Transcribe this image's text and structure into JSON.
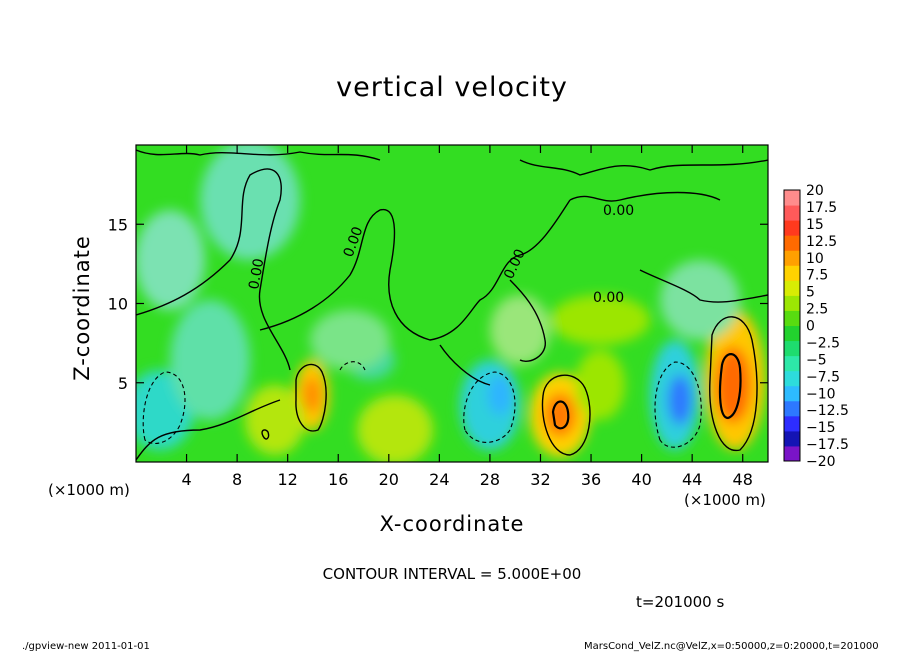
{
  "title": "vertical velocity",
  "footer": {
    "left": "./gpview-new  2011-01-01",
    "right": "MarsCond_VelZ.nc@VelZ,x=0:50000,z=0:20000,t=201000"
  },
  "contour_interval": "CONTOUR INTERVAL = 5.000E+00",
  "time_label": "t=201000 s",
  "colors": {
    "background_field": "#33dd22",
    "outline": "#000000",
    "colorbar": [
      "#7a14c8",
      "#1414b4",
      "#2d2dff",
      "#2d78ff",
      "#2dbbff",
      "#2ddcdc",
      "#2de8a8",
      "#1edc6e",
      "#22d22e",
      "#58dc10",
      "#9ce604",
      "#d8ec04",
      "#ffd200",
      "#ffa000",
      "#ff6a00",
      "#ff3a1e",
      "#ff5a5a",
      "#ff8c8c"
    ]
  },
  "chart_data": {
    "type": "heatmap",
    "title": "vertical velocity",
    "xlabel": "X-coordinate",
    "ylabel": "Z-coordinate",
    "x_unit": "(×1000 m)",
    "xlim": [
      0,
      50
    ],
    "ylim": [
      0,
      20
    ],
    "x_ticks": [
      4,
      8,
      12,
      16,
      20,
      24,
      28,
      32,
      36,
      40,
      44,
      48
    ],
    "y_ticks": [
      5,
      10,
      15
    ],
    "contour_labels": [
      "0.00",
      "0.00",
      "0.00",
      "0.00",
      "0.00"
    ],
    "colorbar": {
      "levels": [
        20,
        17.5,
        15,
        12.5,
        10,
        7.5,
        5,
        2.5,
        0,
        -2.5,
        -5,
        -7.5,
        -10,
        -12.5,
        -15,
        -17.5,
        -20
      ],
      "level_labels": [
        "20",
        "17.5",
        "15",
        "12.5",
        "10",
        "7.5",
        "5",
        "2.5",
        "0",
        "−2.5",
        "−5",
        "−7.5",
        "−10",
        "−12.5",
        "−15",
        "−17.5",
        "−20"
      ]
    },
    "updraft_cores": [
      {
        "x": 13.5,
        "z": 4.5,
        "value": 10
      },
      {
        "x": 33.0,
        "z": 3.0,
        "value": 12.5
      },
      {
        "x": 47.0,
        "z": 5.0,
        "value": 12.5
      }
    ],
    "downdraft_cores": [
      {
        "x": 2.0,
        "z": 3.0,
        "value": -7.5
      },
      {
        "x": 29.0,
        "z": 4.0,
        "value": -7.5
      },
      {
        "x": 43.0,
        "z": 4.0,
        "value": -10
      }
    ]
  }
}
